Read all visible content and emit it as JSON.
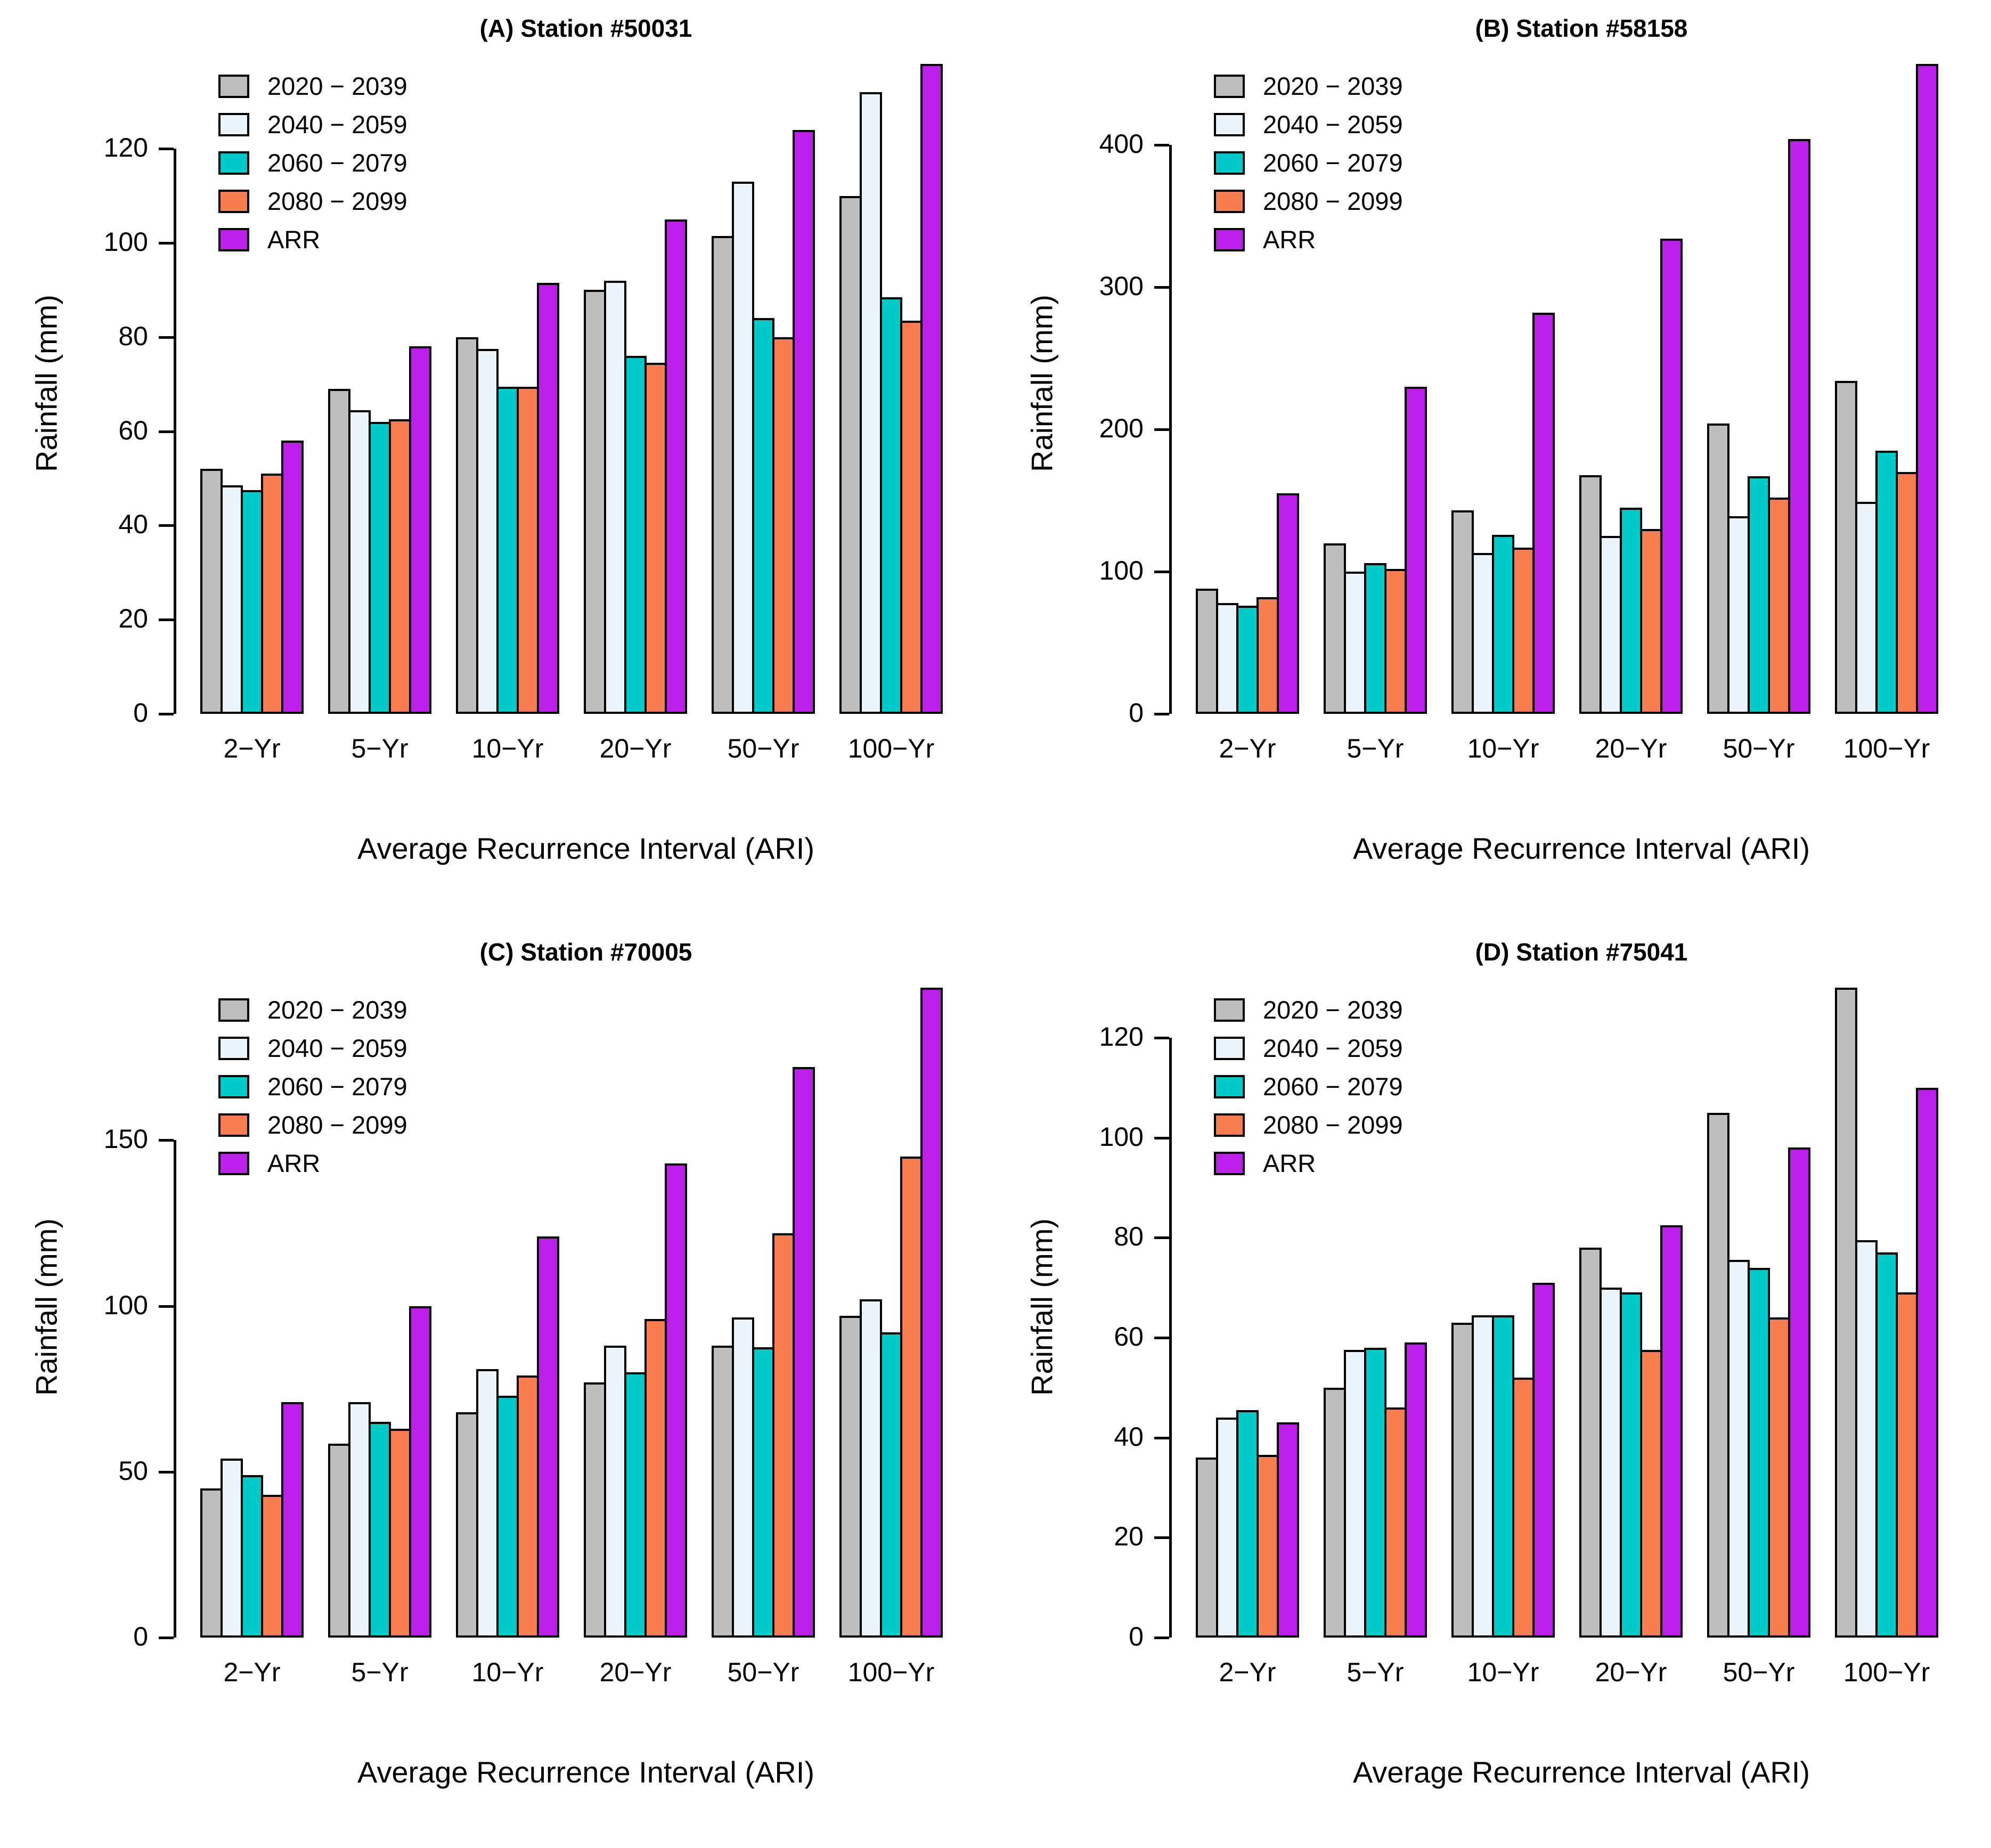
{
  "figure": {
    "background": "#ffffff",
    "border_color": "#000000"
  },
  "legend": [
    "2020 − 2039",
    "2040 − 2059",
    "2060 − 2079",
    "2080 − 2099",
    "ARR"
  ],
  "palette": {
    "2020 − 2039": "#BEBEBE",
    "2040 − 2059": "#EAF4FA",
    "2060 − 2079": "#00CBC9",
    "2080 − 2099": "#F97E4F",
    "ARR": "#BC1FEA"
  },
  "chart_data": [
    {
      "id": "A",
      "type": "bar",
      "title": "(A) Station #50031",
      "xlabel": "Average Recurrence Interval (ARI)",
      "ylabel": "Rainfall (mm)",
      "categories": [
        "2−Yr",
        "5−Yr",
        "10−Yr",
        "20−Yr",
        "50−Yr",
        "100−Yr"
      ],
      "ylim": [
        0,
        120
      ],
      "yticks": [
        0,
        20,
        40,
        60,
        80,
        100,
        120
      ],
      "legend_position": "top-left",
      "grid": false,
      "series": [
        {
          "name": "2020 − 2039",
          "values": [
            52,
            69,
            80,
            90,
            101.5,
            110
          ]
        },
        {
          "name": "2040 − 2059",
          "values": [
            48.5,
            64.5,
            77.5,
            92,
            113,
            132
          ]
        },
        {
          "name": "2060 − 2079",
          "values": [
            47.5,
            62,
            69.5,
            76,
            84,
            88.5
          ]
        },
        {
          "name": "2080 − 2099",
          "values": [
            51,
            62.5,
            69.5,
            74.5,
            80,
            83.5
          ]
        },
        {
          "name": "ARR",
          "values": [
            58,
            78,
            91.5,
            105,
            124,
            138
          ]
        }
      ]
    },
    {
      "id": "B",
      "type": "bar",
      "title": "(B) Station #58158",
      "xlabel": "Average Recurrence Interval (ARI)",
      "ylabel": "Rainfall (mm)",
      "categories": [
        "2−Yr",
        "5−Yr",
        "10−Yr",
        "20−Yr",
        "50−Yr",
        "100−Yr"
      ],
      "ylim": [
        0,
        400
      ],
      "yticks": [
        0,
        100,
        200,
        300,
        400
      ],
      "legend_position": "top-left",
      "grid": false,
      "series": [
        {
          "name": "2020 − 2039",
          "values": [
            88,
            120,
            143,
            168,
            204,
            234
          ]
        },
        {
          "name": "2040 − 2059",
          "values": [
            78,
            100,
            113,
            125,
            139,
            149
          ]
        },
        {
          "name": "2060 − 2079",
          "values": [
            76,
            106,
            126,
            145,
            167,
            185
          ]
        },
        {
          "name": "2080 − 2099",
          "values": [
            82,
            102,
            117,
            130,
            152,
            170
          ]
        },
        {
          "name": "ARR",
          "values": [
            155,
            230,
            282,
            334,
            404,
            457
          ]
        }
      ]
    },
    {
      "id": "C",
      "type": "bar",
      "title": "(C) Station #70005",
      "xlabel": "Average Recurrence Interval (ARI)",
      "ylabel": "Rainfall (mm)",
      "categories": [
        "2−Yr",
        "5−Yr",
        "10−Yr",
        "20−Yr",
        "50−Yr",
        "100−Yr"
      ],
      "ylim": [
        0,
        150
      ],
      "yticks": [
        0,
        50,
        100,
        150
      ],
      "legend_position": "top-left",
      "grid": false,
      "series": [
        {
          "name": "2020 − 2039",
          "values": [
            45,
            58.5,
            68,
            77,
            88,
            97
          ]
        },
        {
          "name": "2040 − 2059",
          "values": [
            54,
            71,
            81,
            88,
            96.5,
            102
          ]
        },
        {
          "name": "2060 − 2079",
          "values": [
            49,
            65,
            73,
            80,
            87.5,
            92
          ]
        },
        {
          "name": "2080 − 2099",
          "values": [
            43,
            63,
            79,
            96,
            122,
            145
          ]
        },
        {
          "name": "ARR",
          "values": [
            71,
            100,
            121,
            143,
            172,
            196
          ]
        }
      ]
    },
    {
      "id": "D",
      "type": "bar",
      "title": "(D) Station #75041",
      "xlabel": "Average Recurrence Interval (ARI)",
      "ylabel": "Rainfall (mm)",
      "categories": [
        "2−Yr",
        "5−Yr",
        "10−Yr",
        "20−Yr",
        "50−Yr",
        "100−Yr"
      ],
      "ylim": [
        0,
        120
      ],
      "yticks": [
        0,
        20,
        40,
        60,
        80,
        100,
        120
      ],
      "legend_position": "top-left",
      "grid": false,
      "series": [
        {
          "name": "2020 − 2039",
          "values": [
            36,
            50,
            63,
            78,
            105,
            130
          ]
        },
        {
          "name": "2040 − 2059",
          "values": [
            44,
            57.5,
            64.5,
            70,
            75.5,
            79.5
          ]
        },
        {
          "name": "2060 − 2079",
          "values": [
            45.5,
            58,
            64.5,
            69,
            74,
            77
          ]
        },
        {
          "name": "2080 − 2099",
          "values": [
            36.5,
            46,
            52,
            57.5,
            64,
            69
          ]
        },
        {
          "name": "ARR",
          "values": [
            43,
            59,
            71,
            82.5,
            98,
            110
          ]
        }
      ]
    }
  ]
}
